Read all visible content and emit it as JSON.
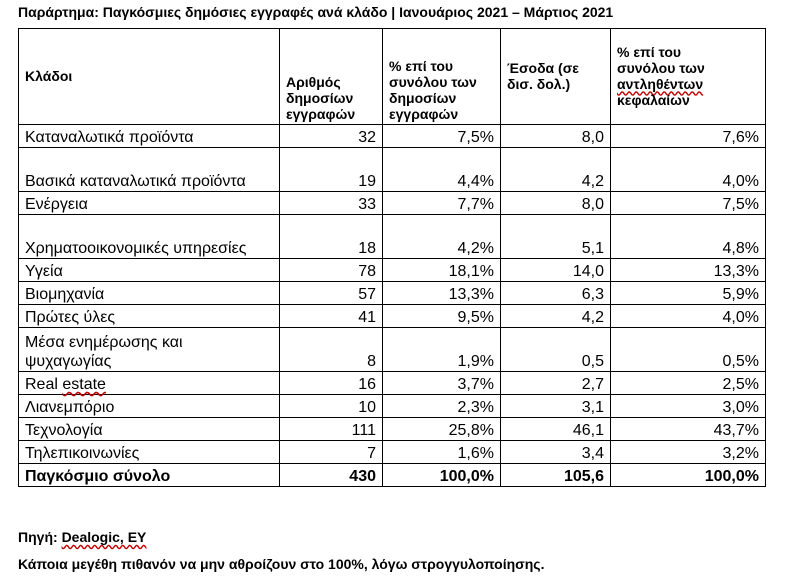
{
  "title": "Παράρτημα: Παγκόσμιες δημόσιες εγγραφές ανά κλάδο | Ιανουάριος 2021 – Μάρτιος 2021",
  "table": {
    "headers": [
      "Κλάδοι",
      "Αριθμός δημοσίων εγγραφών",
      "% επί του συνόλου των δημοσίων εγγραφών",
      "Έσοδα (σε δισ. δολ.)",
      "% επί του συνόλου των αντληθέντων κεφαλαίων"
    ],
    "rows": [
      {
        "sector": "Καταναλωτικά προϊόντα",
        "count": "32",
        "pct_listings": "7,5%",
        "proceeds": "8,0",
        "pct_capital": "7,6%"
      },
      {
        "sector": "Βασικά καταναλωτικά προϊόντα",
        "count": "19",
        "pct_listings": "4,4%",
        "proceeds": "4,2",
        "pct_capital": "4,0%"
      },
      {
        "sector": "Ενέργεια",
        "count": "33",
        "pct_listings": "7,7%",
        "proceeds": "8,0",
        "pct_capital": "7,5%"
      },
      {
        "sector": "Χρηματοοικονομικές υπηρεσίες",
        "count": "18",
        "pct_listings": "4,2%",
        "proceeds": "5,1",
        "pct_capital": "4,8%"
      },
      {
        "sector": "Υγεία",
        "count": "78",
        "pct_listings": "18,1%",
        "proceeds": "14,0",
        "pct_capital": "13,3%"
      },
      {
        "sector": "Βιομηχανία",
        "count": "57",
        "pct_listings": "13,3%",
        "proceeds": "6,3",
        "pct_capital": "5,9%"
      },
      {
        "sector": "Πρώτες ύλες",
        "count": "41",
        "pct_listings": "9,5%",
        "proceeds": "4,2",
        "pct_capital": "4,0%"
      },
      {
        "sector": "Μέσα ενημέρωσης και ψυχαγωγίας",
        "count": "8",
        "pct_listings": "1,9%",
        "proceeds": "0,5",
        "pct_capital": "0,5%"
      },
      {
        "sector": "Real estate",
        "count": "16",
        "pct_listings": "3,7%",
        "proceeds": "2,7",
        "pct_capital": "2,5%"
      },
      {
        "sector": "Λιανεμπόριο",
        "count": "10",
        "pct_listings": "2,3%",
        "proceeds": "3,1",
        "pct_capital": "3,0%"
      },
      {
        "sector": "Τεχνολογία",
        "count": "111",
        "pct_listings": "25,8%",
        "proceeds": "46,1",
        "pct_capital": "43,7%"
      },
      {
        "sector": "Τηλεπικοινωνίες",
        "count": "7",
        "pct_listings": "1,6%",
        "proceeds": "3,4",
        "pct_capital": "3,2%"
      }
    ],
    "total": {
      "sector": "Παγκόσμιο σύνολο",
      "count": "430",
      "pct_listings": "100,0%",
      "proceeds": "105,6",
      "pct_capital": "100,0%"
    }
  },
  "source_label": "Πηγή: ",
  "source_value": "Dealogic, EY",
  "note": "Κάποια μεγέθη πιθανόν να μην αθροίζουν στο 100%, λόγω στρογγυλοποίησης."
}
